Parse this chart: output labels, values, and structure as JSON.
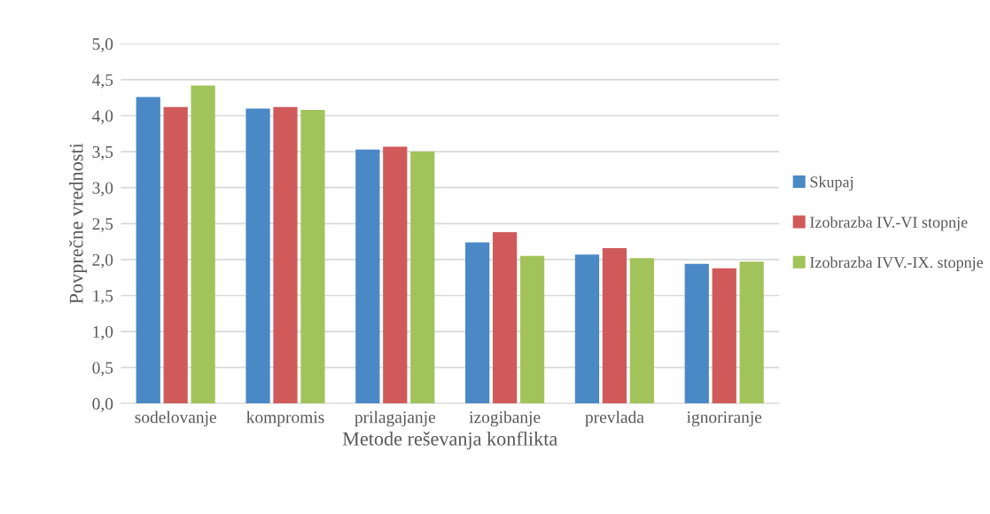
{
  "chart_data": {
    "type": "bar",
    "xlabel": "Metode reševanja konflikta",
    "ylabel": "Povprečne vrednosti",
    "categories": [
      "sodelovanje",
      "kompromis",
      "prilagajanje",
      "izogibanje",
      "prevlada",
      "ignoriranje"
    ],
    "series": [
      {
        "name": "Skupaj",
        "color": "#4a88c6",
        "values": [
          4.26,
          4.1,
          3.53,
          2.24,
          2.07,
          1.94
        ]
      },
      {
        "name": "Izobrazba IV.-VI stopnje",
        "color": "#d05a5a",
        "values": [
          4.12,
          4.12,
          3.57,
          2.38,
          2.16,
          1.88
        ]
      },
      {
        "name": "Izobrazba IVV.-IX. stopnje",
        "color": "#a2c35a",
        "values": [
          4.42,
          4.08,
          3.5,
          2.05,
          2.02,
          1.97
        ]
      }
    ],
    "ylim": [
      0,
      5
    ],
    "yticks": [
      {
        "value": 0,
        "label": "0,0"
      },
      {
        "value": 0.5,
        "label": "0,5"
      },
      {
        "value": 1,
        "label": "1,0"
      },
      {
        "value": 1.5,
        "label": "1,5"
      },
      {
        "value": 2,
        "label": "2,0"
      },
      {
        "value": 2.5,
        "label": "2,5"
      },
      {
        "value": 3,
        "label": "3,0"
      },
      {
        "value": 3.5,
        "label": "3,5"
      },
      {
        "value": 4,
        "label": "4,0"
      },
      {
        "value": 4.5,
        "label": "4,5"
      },
      {
        "value": 5,
        "label": "5,0"
      }
    ],
    "grid": "y",
    "legend": "right"
  }
}
